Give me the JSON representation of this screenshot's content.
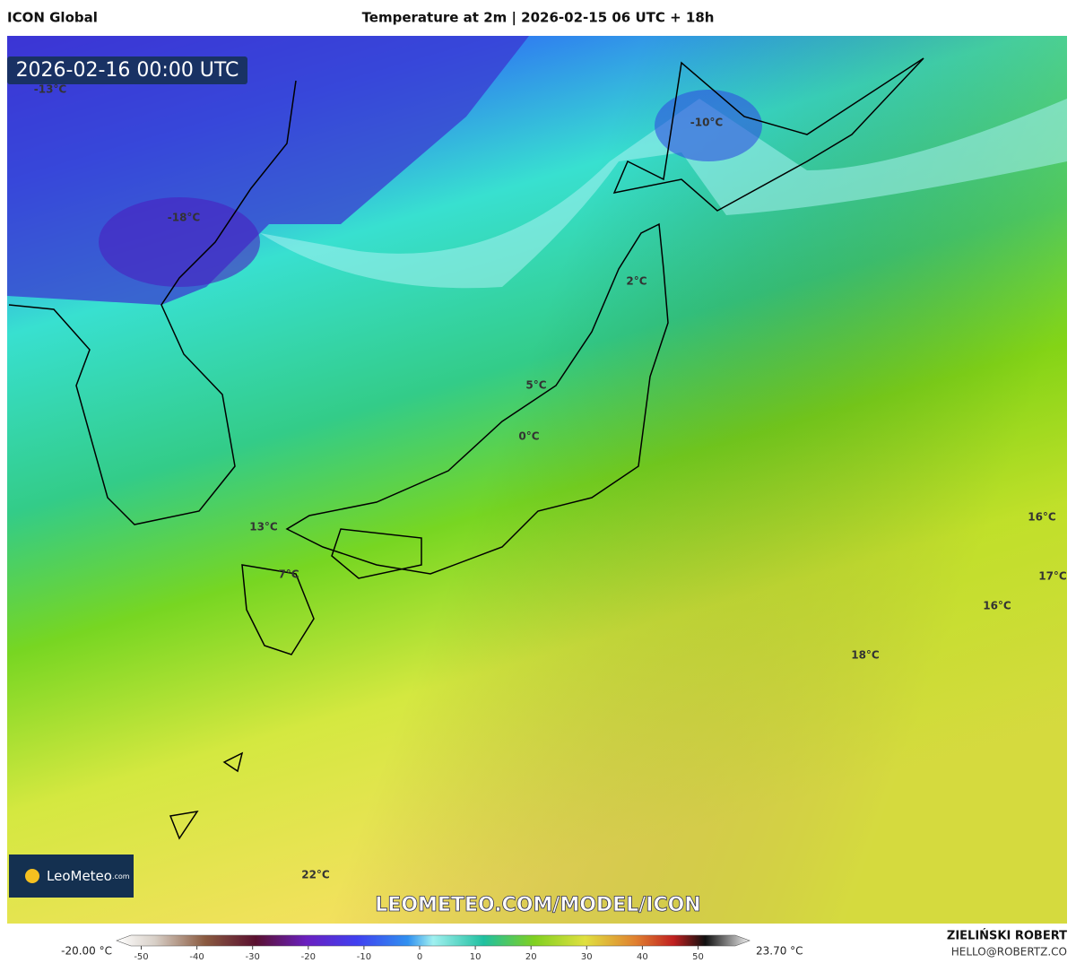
{
  "header": {
    "model": "ICON Global",
    "title": "Temperature at 2m | 2026-02-15 06 UTC + 18h"
  },
  "map": {
    "valid_time": "2026-02-16 00:00 UTC",
    "labels": [
      "-13°C",
      "-18°C",
      "-10°C",
      "2°C",
      "5°C",
      "0°C",
      "13°C",
      "7°C",
      "16°C",
      "17°C",
      "16°C",
      "18°C",
      "22°C"
    ],
    "watermark": "LEOMETEO.COM/MODEL/ICON",
    "logo": "LeoMeteo",
    "logo_suffix": ".com"
  },
  "colorbar": {
    "min_label": "-20.00 °C",
    "max_label": "23.70 °C",
    "ticks": [
      -50,
      -40,
      -30,
      -20,
      -10,
      0,
      10,
      20,
      30,
      40,
      50
    ]
  },
  "footer": {
    "author": "ZIELIŃSKI ROBERT",
    "email": "HELLO@ROBERTZ.CO"
  }
}
